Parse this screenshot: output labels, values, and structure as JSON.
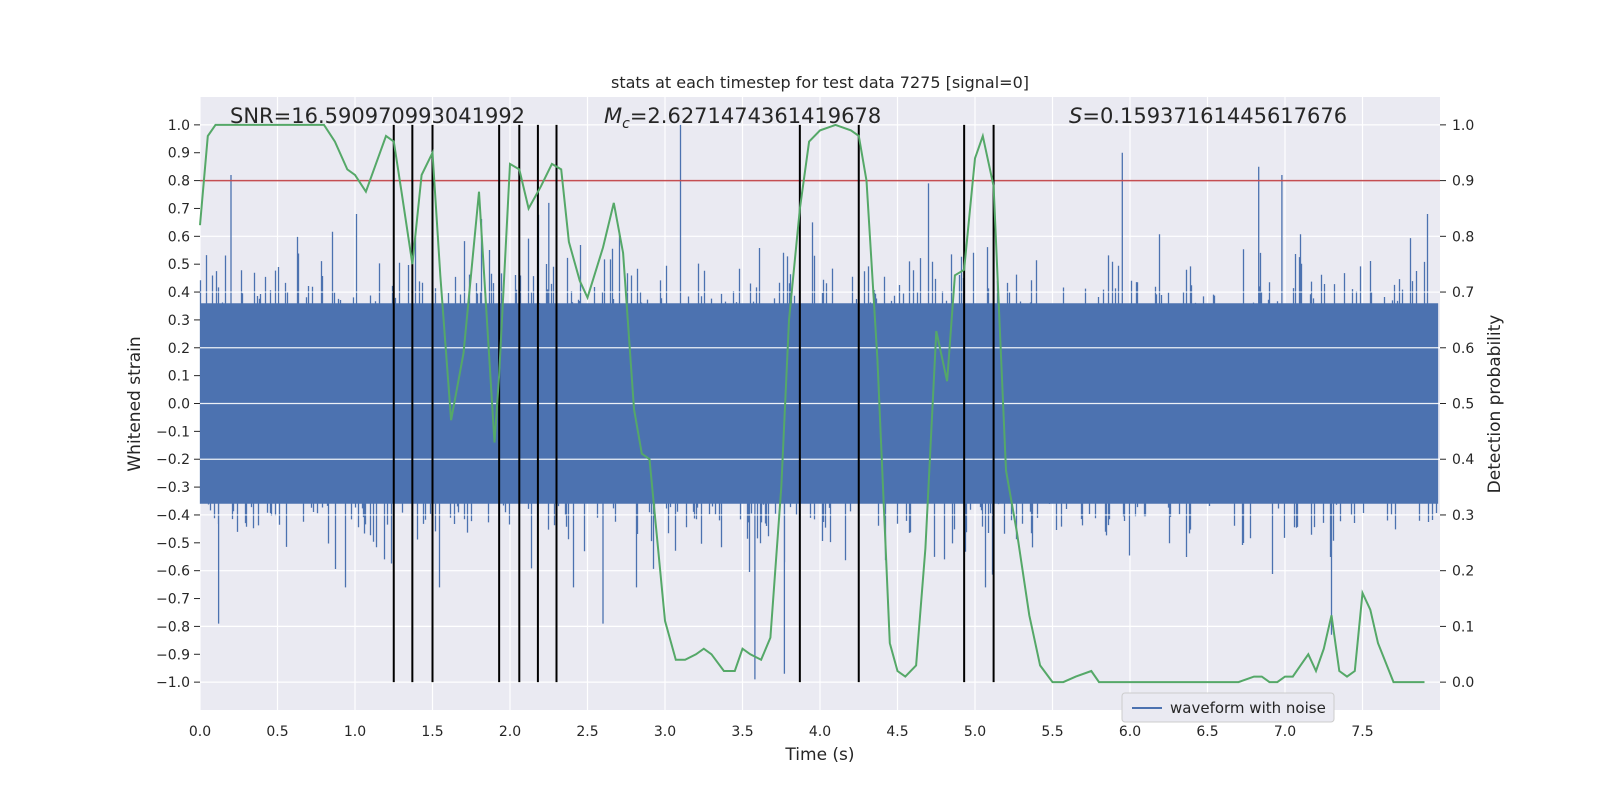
{
  "chart_data": {
    "type": "line",
    "title": "stats at each timestep for test data 7275 [signal=0]",
    "xlabel": "Time (s)",
    "ylabel_left": "Whitened strain",
    "ylabel_right": "Detection probability",
    "xlim": [
      0.0,
      8.0
    ],
    "ylim_left": [
      -1.1,
      1.1
    ],
    "ylim_right": [
      -0.05,
      1.05
    ],
    "x_ticks": [
      "0.0",
      "0.5",
      "1.0",
      "1.5",
      "2.0",
      "2.5",
      "3.0",
      "3.5",
      "4.0",
      "4.5",
      "5.0",
      "5.5",
      "6.0",
      "6.5",
      "7.0",
      "7.5"
    ],
    "y_ticks_left": [
      "−1.0",
      "−0.9",
      "−0.8",
      "−0.7",
      "−0.6",
      "−0.5",
      "−0.4",
      "−0.3",
      "−0.2",
      "−0.1",
      "0.0",
      "0.1",
      "0.2",
      "0.3",
      "0.4",
      "0.5",
      "0.6",
      "0.7",
      "0.8",
      "0.9",
      "1.0"
    ],
    "y_ticks_right": [
      "0.0",
      "0.1",
      "0.2",
      "0.3",
      "0.4",
      "0.5",
      "0.6",
      "0.7",
      "0.8",
      "0.9",
      "1.0"
    ],
    "grid": true,
    "legend_position": "bottom-right",
    "annotations": {
      "snr": "SNR=16.590970993041992",
      "mc_symbol": "M",
      "mc_subscript": "c",
      "mc_value": "=2.6271474361419678",
      "s_symbol": "S",
      "s_value": "=0.15937161445617676"
    },
    "threshold": {
      "value": 0.8,
      "axis": "left",
      "color": "#c44e52"
    },
    "vlines": [
      1.25,
      1.37,
      1.5,
      1.93,
      2.06,
      2.18,
      2.3,
      3.87,
      4.25,
      4.93,
      5.12
    ],
    "series": [
      {
        "name": "waveform with noise",
        "axis": "left",
        "color": "#4c72b0",
        "envelope_std": 0.2,
        "spikes": [
          [
            0.2,
            0.82
          ],
          [
            0.12,
            -0.79
          ],
          [
            1.37,
            -0.83
          ],
          [
            2.6,
            -0.79
          ],
          [
            3.1,
            1.0
          ],
          [
            3.58,
            -0.99
          ],
          [
            3.77,
            -0.97
          ],
          [
            5.95,
            0.9
          ],
          [
            6.83,
            0.85
          ],
          [
            6.98,
            0.82
          ],
          [
            7.3,
            -0.83
          ],
          [
            4.7,
            0.79
          ],
          [
            2.25,
            0.72
          ]
        ]
      },
      {
        "axis": "right",
        "color": "#55a868",
        "x": [
          0.0,
          0.05,
          0.1,
          0.2,
          0.3,
          0.4,
          0.5,
          0.6,
          0.7,
          0.8,
          0.87,
          0.95,
          1.0,
          1.07,
          1.2,
          1.25,
          1.3,
          1.37,
          1.43,
          1.5,
          1.55,
          1.62,
          1.7,
          1.8,
          1.9,
          1.93,
          2.0,
          2.06,
          2.12,
          2.2,
          2.27,
          2.33,
          2.38,
          2.45,
          2.5,
          2.6,
          2.67,
          2.73,
          2.8,
          2.85,
          2.9,
          3.0,
          3.07,
          3.13,
          3.2,
          3.25,
          3.3,
          3.38,
          3.45,
          3.5,
          3.55,
          3.62,
          3.68,
          3.75,
          3.8,
          3.87,
          3.93,
          4.0,
          4.1,
          4.2,
          4.25,
          4.3,
          4.37,
          4.45,
          4.5,
          4.55,
          4.62,
          4.68,
          4.75,
          4.82,
          4.87,
          4.93,
          5.0,
          5.05,
          5.12,
          5.2,
          5.27,
          5.35,
          5.42,
          5.5,
          5.57,
          5.65,
          5.75,
          5.8,
          5.9,
          6.0,
          6.1,
          6.2,
          6.3,
          6.4,
          6.5,
          6.6,
          6.7,
          6.8,
          6.85,
          6.9,
          6.95,
          7.0,
          7.05,
          7.1,
          7.15,
          7.2,
          7.25,
          7.3,
          7.35,
          7.4,
          7.45,
          7.5,
          7.55,
          7.6,
          7.7,
          7.8,
          7.9
        ],
        "values": [
          0.82,
          0.98,
          1.0,
          1.0,
          1.0,
          1.0,
          1.0,
          1.0,
          1.0,
          1.0,
          0.97,
          0.92,
          0.91,
          0.88,
          0.98,
          0.97,
          0.88,
          0.75,
          0.91,
          0.95,
          0.73,
          0.47,
          0.59,
          0.88,
          0.43,
          0.55,
          0.93,
          0.92,
          0.85,
          0.89,
          0.93,
          0.92,
          0.79,
          0.72,
          0.69,
          0.78,
          0.86,
          0.77,
          0.49,
          0.41,
          0.4,
          0.11,
          0.04,
          0.04,
          0.05,
          0.06,
          0.05,
          0.02,
          0.02,
          0.06,
          0.05,
          0.04,
          0.08,
          0.35,
          0.65,
          0.85,
          0.97,
          0.99,
          1.0,
          0.99,
          0.98,
          0.9,
          0.58,
          0.07,
          0.02,
          0.01,
          0.03,
          0.24,
          0.63,
          0.54,
          0.73,
          0.74,
          0.94,
          0.98,
          0.89,
          0.38,
          0.27,
          0.12,
          0.03,
          0.0,
          0.0,
          0.01,
          0.02,
          0.0,
          0.0,
          0.0,
          0.0,
          0.0,
          0.0,
          0.0,
          0.0,
          0.0,
          0.0,
          0.01,
          0.01,
          0.0,
          0.0,
          0.01,
          0.01,
          0.03,
          0.05,
          0.02,
          0.06,
          0.12,
          0.02,
          0.01,
          0.02,
          0.16,
          0.13,
          0.07,
          0.0,
          0.0,
          0.0
        ]
      }
    ]
  }
}
